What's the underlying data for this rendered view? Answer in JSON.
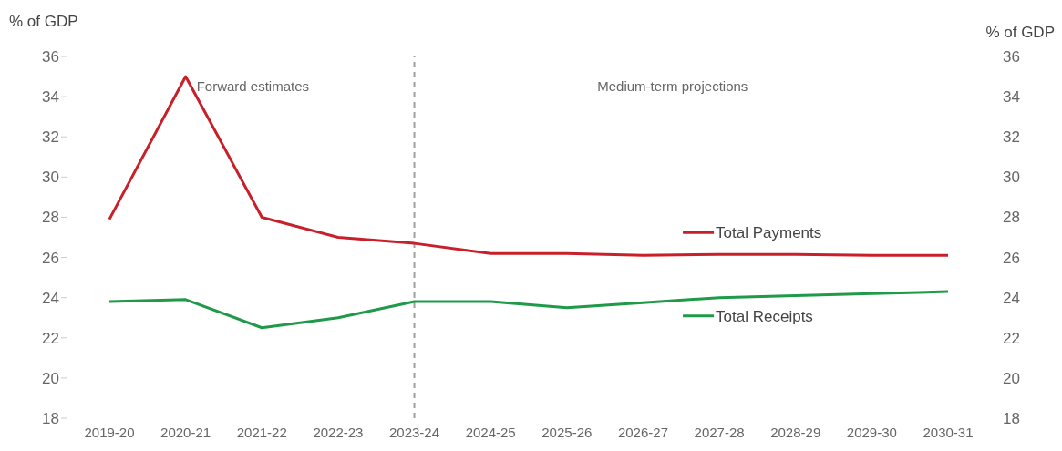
{
  "chart_data": {
    "type": "line",
    "ylabel": "% of GDP",
    "y2label": "% of GDP",
    "categories": [
      "2019-20",
      "2020-21",
      "2021-22",
      "2022-23",
      "2023-24",
      "2024-25",
      "2025-26",
      "2026-27",
      "2027-28",
      "2028-29",
      "2029-30",
      "2030-31"
    ],
    "series": [
      {
        "name": "Total Payments",
        "color": "#c8202a",
        "values": [
          27.9,
          35.0,
          28.0,
          27.0,
          26.7,
          26.2,
          26.2,
          26.1,
          26.15,
          26.15,
          26.1,
          26.1
        ]
      },
      {
        "name": "Total Receipts",
        "color": "#1f9a48",
        "values": [
          23.8,
          23.9,
          22.5,
          23.0,
          23.8,
          23.8,
          23.5,
          23.75,
          24.0,
          24.1,
          24.2,
          24.3
        ]
      }
    ],
    "ylim": [
      18,
      36
    ],
    "yticks": [
      18,
      20,
      22,
      24,
      26,
      28,
      30,
      32,
      34,
      36
    ],
    "y2lim": [
      18,
      36
    ],
    "y2ticks": [
      18,
      20,
      22,
      24,
      26,
      28,
      30,
      32,
      34,
      36
    ],
    "legend": "right",
    "marker": "none",
    "line_style": "solid",
    "ref_lines": [
      {
        "axis": "x",
        "value": "2023-24",
        "color": "#a0a0a0",
        "line_style": "dashed"
      }
    ],
    "annotations": [
      "Forward estimates",
      "Medium-term projections"
    ]
  }
}
